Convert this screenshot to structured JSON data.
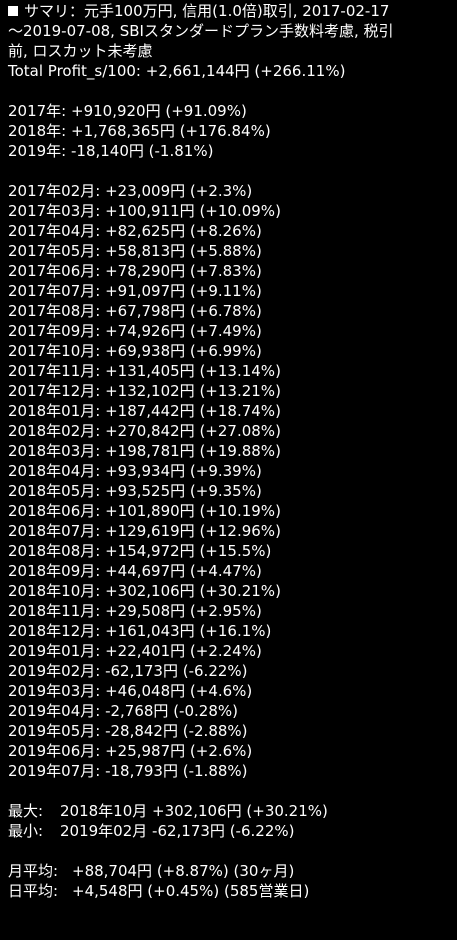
{
  "summary": {
    "header_lines": [
      "サマリ：元手100万円, 信用(1.0倍)取引, 2017-02-17",
      "～2019-07-08, SBIスタンダードプラン手数料考慮, 税引",
      "前, ロスカット未考慮"
    ],
    "total": "Total Profit_s/100: +2,661,144円 (+266.11%)"
  },
  "yearly": [
    "2017年: +910,920円 (+91.09%)",
    "2018年: +1,768,365円 (+176.84%)",
    "2019年: -18,140円 (-1.81%)"
  ],
  "monthly": [
    "2017年02月: +23,009円 (+2.3%)",
    "2017年03月: +100,911円 (+10.09%)",
    "2017年04月: +82,625円 (+8.26%)",
    "2017年05月: +58,813円 (+5.88%)",
    "2017年06月: +78,290円 (+7.83%)",
    "2017年07月: +91,097円 (+9.11%)",
    "2017年08月: +67,798円 (+6.78%)",
    "2017年09月: +74,926円 (+7.49%)",
    "2017年10月: +69,938円 (+6.99%)",
    "2017年11月: +131,405円 (+13.14%)",
    "2017年12月: +132,102円 (+13.21%)",
    "2018年01月: +187,442円 (+18.74%)",
    "2018年02月: +270,842円 (+27.08%)",
    "2018年03月: +198,781円 (+19.88%)",
    "2018年04月: +93,934円 (+9.39%)",
    "2018年05月: +93,525円 (+9.35%)",
    "2018年06月: +101,890円 (+10.19%)",
    "2018年07月: +129,619円 (+12.96%)",
    "2018年08月: +154,972円 (+15.5%)",
    "2018年09月: +44,697円 (+4.47%)",
    "2018年10月: +302,106円 (+30.21%)",
    "2018年11月: +29,508円 (+2.95%)",
    "2018年12月: +161,043円 (+16.1%)",
    "2019年01月: +22,401円 (+2.24%)",
    "2019年02月: -62,173円 (-6.22%)",
    "2019年03月: +46,048円 (+4.6%)",
    "2019年04月: -2,768円 (-0.28%)",
    "2019年05月: -28,842円 (-2.88%)",
    "2019年06月: +25,987円 (+2.6%)",
    "2019年07月: -18,793円 (-1.88%)"
  ],
  "extremes": {
    "max_label": "最大:",
    "max_value": "2018年10月 +302,106円 (+30.21%)",
    "min_label": "最小:",
    "min_value": "2019年02月 -62,173円 (-6.22%)"
  },
  "averages": {
    "monthly_label": "月平均:",
    "monthly_value": "+88,704円 (+8.87%) (30ヶ月)",
    "daily_label": "日平均:",
    "daily_value": "+4,548円 (+0.45%) (585営業日)"
  },
  "colors": {
    "background": "#000000",
    "text": "#ffffff"
  }
}
